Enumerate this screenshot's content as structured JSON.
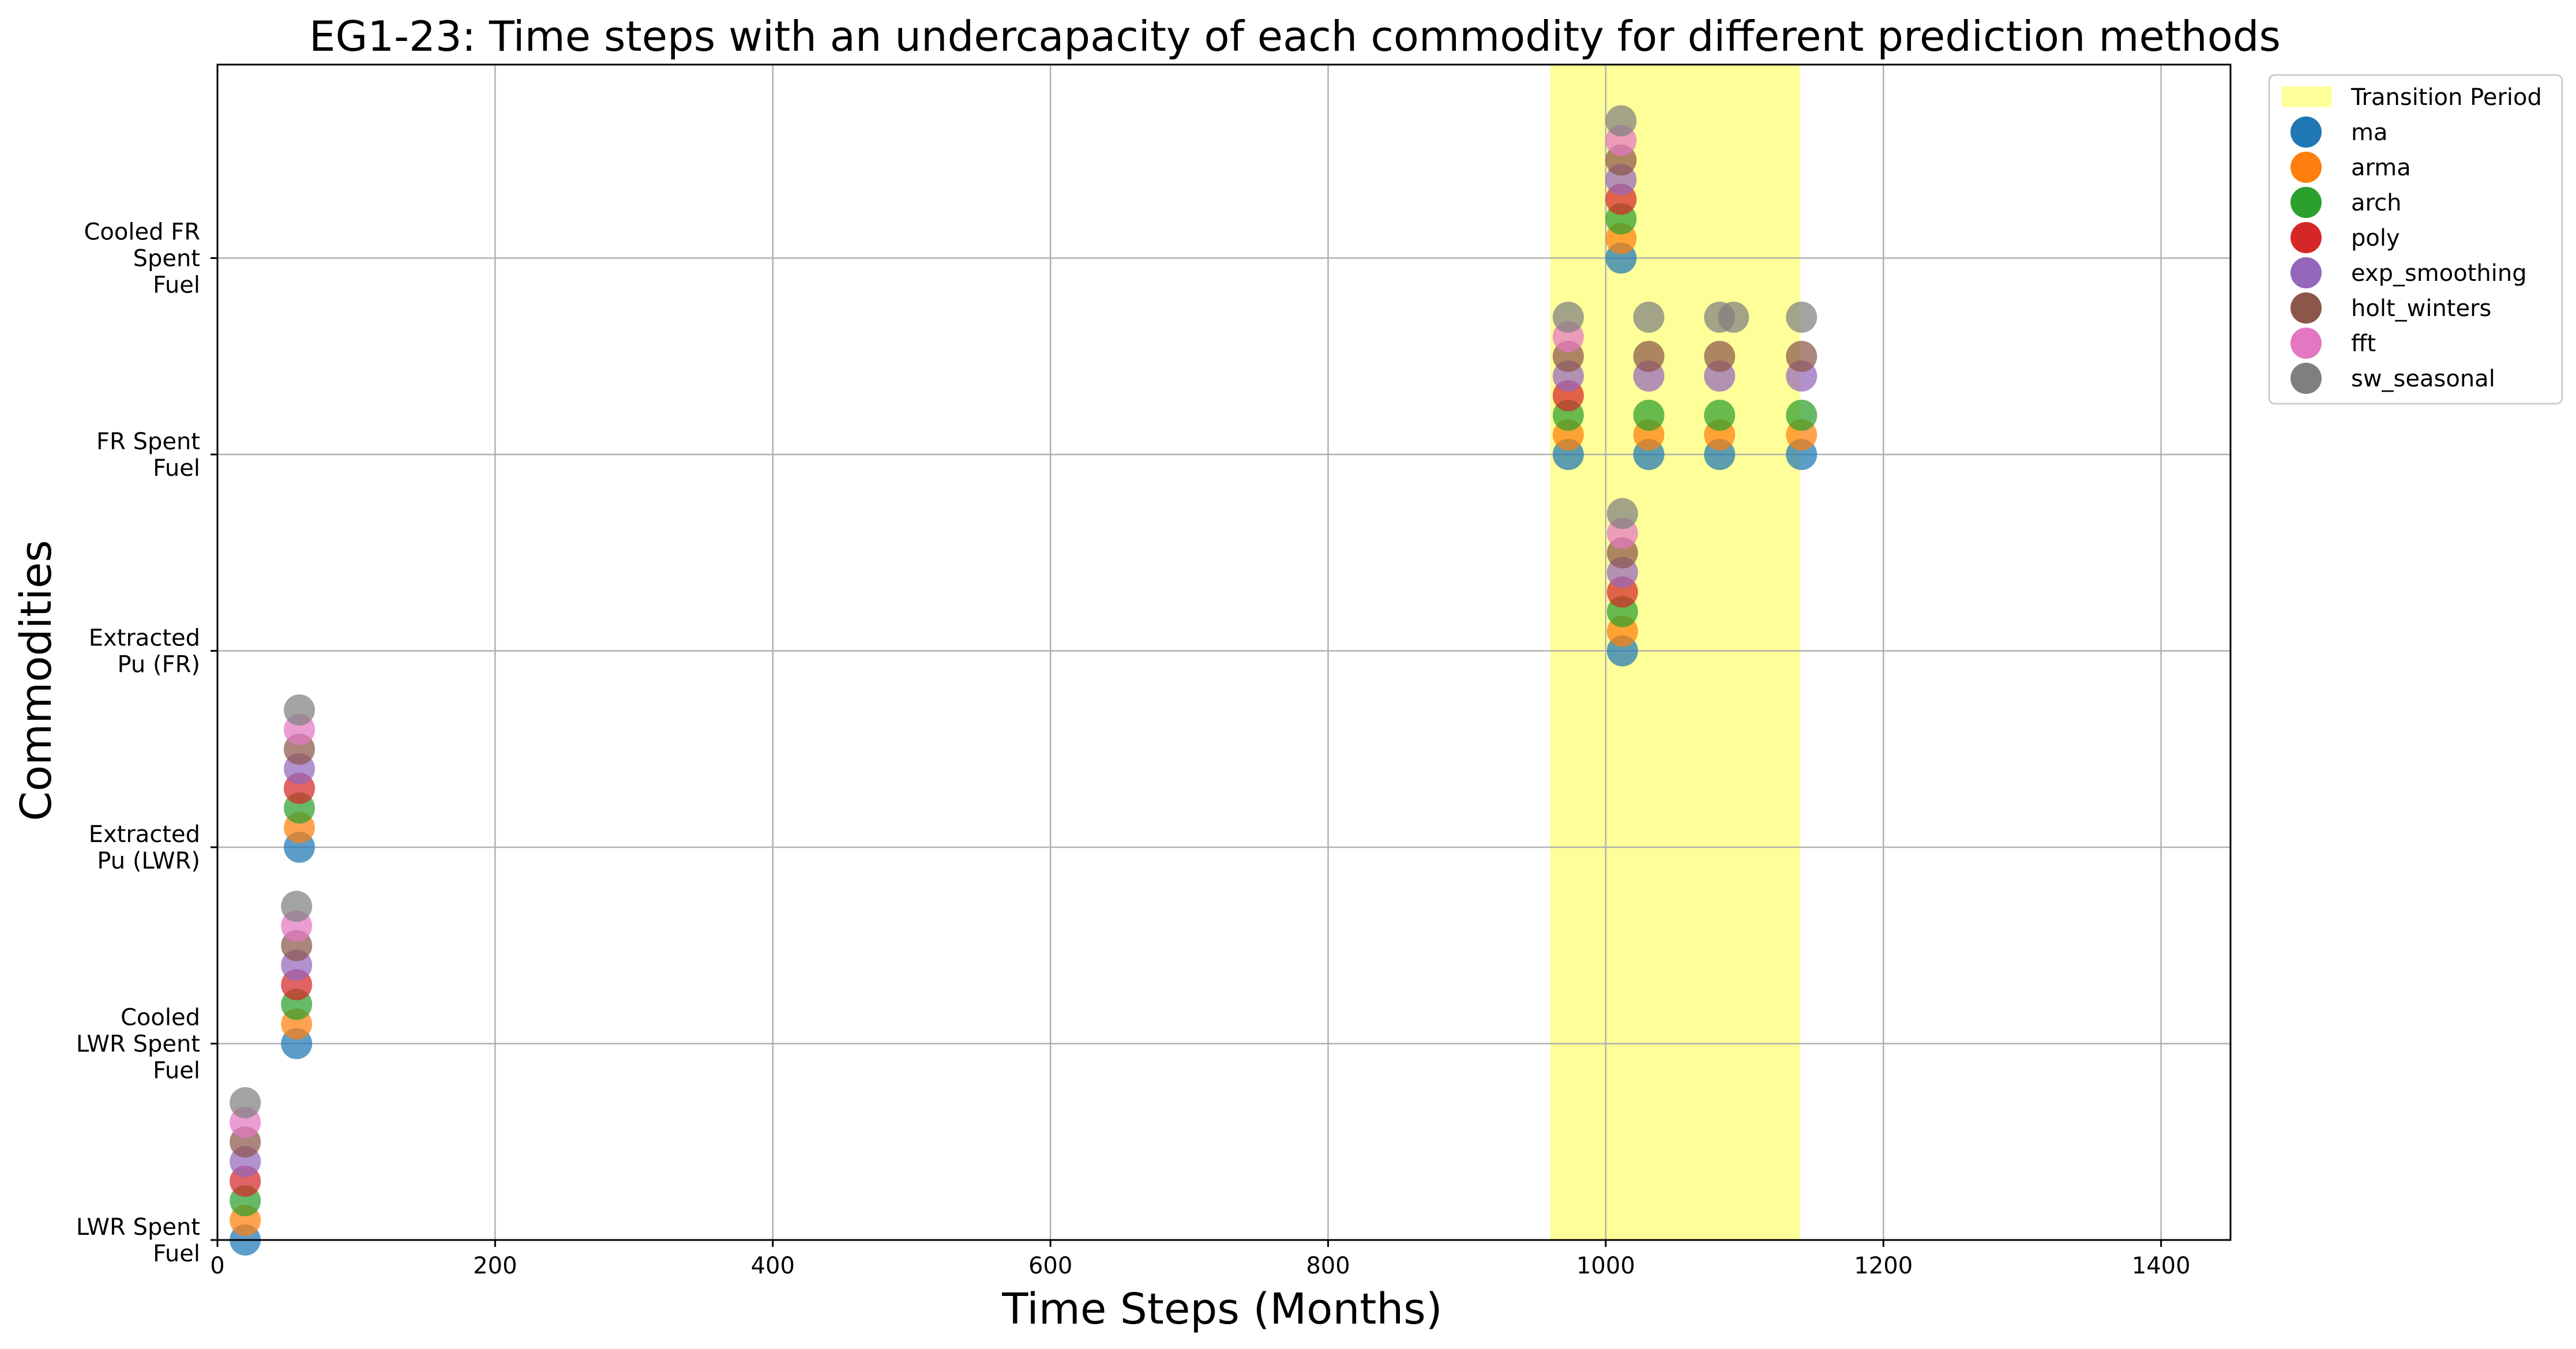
{
  "chart_data": {
    "type": "scatter",
    "title": "EG1-23: Time steps with an undercapacity of each commodity for different prediction methods",
    "xlabel": "Time Steps (Months)",
    "ylabel": "Commodities",
    "xlim": [
      0,
      1450
    ],
    "x_ticks": [
      0,
      200,
      400,
      600,
      800,
      1000,
      1200,
      1400
    ],
    "categories": [
      [
        "LWR Spent",
        "Fuel"
      ],
      [
        "Cooled",
        "LWR Spent",
        "Fuel"
      ],
      [
        "Extracted",
        "Pu (LWR)"
      ],
      [
        "Extracted",
        "Pu (FR)"
      ],
      [
        "FR Spent",
        "Fuel"
      ],
      [
        "Cooled FR",
        "Spent",
        "Fuel"
      ]
    ],
    "grid": true,
    "legend_position": "outside-right",
    "transition_period": {
      "label": "Transition Period",
      "x_range": [
        960,
        1140
      ],
      "color": "#ffff99"
    },
    "series": [
      {
        "name": "ma",
        "color": "#1f77b4",
        "points": [
          [
            20,
            0
          ],
          [
            57,
            1
          ],
          [
            59,
            2
          ],
          [
            1012,
            3
          ],
          [
            1011,
            5
          ],
          [
            973,
            4
          ],
          [
            1031,
            4
          ],
          [
            1082,
            4
          ],
          [
            1141,
            4
          ]
        ]
      },
      {
        "name": "arma",
        "color": "#ff7f0e",
        "points": [
          [
            20,
            0
          ],
          [
            57,
            1
          ],
          [
            59,
            2
          ],
          [
            1012,
            3
          ],
          [
            1011,
            5
          ],
          [
            973,
            4
          ],
          [
            1031,
            4
          ],
          [
            1082,
            4
          ],
          [
            1141,
            4
          ]
        ]
      },
      {
        "name": "arch",
        "color": "#2ca02c",
        "points": [
          [
            20,
            0
          ],
          [
            57,
            1
          ],
          [
            59,
            2
          ],
          [
            1012,
            3
          ],
          [
            1011,
            5
          ],
          [
            973,
            4
          ],
          [
            1031,
            4
          ],
          [
            1082,
            4
          ],
          [
            1141,
            4
          ]
        ]
      },
      {
        "name": "poly",
        "color": "#d62728",
        "points": [
          [
            20,
            0
          ],
          [
            57,
            1
          ],
          [
            59,
            2
          ],
          [
            1012,
            3
          ],
          [
            1011,
            5
          ],
          [
            973,
            4
          ]
        ]
      },
      {
        "name": "exp_smoothing",
        "color": "#9467bd",
        "points": [
          [
            20,
            0
          ],
          [
            57,
            1
          ],
          [
            59,
            2
          ],
          [
            1012,
            3
          ],
          [
            1011,
            5
          ],
          [
            973,
            4
          ],
          [
            1031,
            4
          ],
          [
            1082,
            4
          ],
          [
            1141,
            4
          ]
        ]
      },
      {
        "name": "holt_winters",
        "color": "#8c564b",
        "points": [
          [
            20,
            0
          ],
          [
            57,
            1
          ],
          [
            59,
            2
          ],
          [
            1012,
            3
          ],
          [
            1011,
            5
          ],
          [
            973,
            4
          ],
          [
            1031,
            4
          ],
          [
            1082,
            4
          ],
          [
            1141,
            4
          ]
        ]
      },
      {
        "name": "fft",
        "color": "#e377c2",
        "points": [
          [
            20,
            0
          ],
          [
            57,
            1
          ],
          [
            59,
            2
          ],
          [
            1012,
            3
          ],
          [
            1011,
            5
          ],
          [
            973,
            4
          ]
        ]
      },
      {
        "name": "sw_seasonal",
        "color": "#7f7f7f",
        "points": [
          [
            20,
            0
          ],
          [
            57,
            1
          ],
          [
            59,
            2
          ],
          [
            1012,
            3
          ],
          [
            1011,
            5
          ],
          [
            973,
            4
          ],
          [
            1031,
            4
          ],
          [
            1082,
            4
          ],
          [
            1092,
            4
          ],
          [
            1141,
            4
          ]
        ]
      }
    ]
  }
}
